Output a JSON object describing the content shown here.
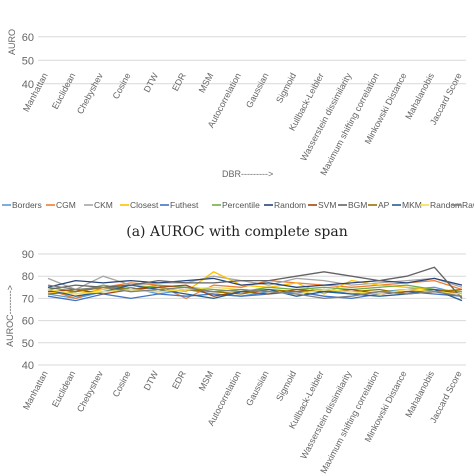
{
  "caption": "(a) AUROC with complete span",
  "chart_data": [
    {
      "type": "line",
      "ylabel": "AURO",
      "xlabel": "DBR--------->",
      "yticks": [
        "60",
        "50",
        "40"
      ],
      "ylim": [
        38,
        68
      ],
      "categories": [
        "Manhattan",
        "Euclidean",
        "Chebyshev",
        "Cosine",
        "DTW",
        "EDR",
        "MSM",
        "Autocorrelation",
        "Gaussian",
        "Sigmoid",
        "Kullback-Leibler",
        "Wasserstein dissimilarity",
        "Maximum shifting correlation",
        "Minkowski Distance",
        "Mahalanobis",
        "Jaccard Score"
      ],
      "legend_position": "bottom",
      "legend": [
        {
          "name": "Borders",
          "color": "#5B9BD5"
        },
        {
          "name": "CGM",
          "color": "#ED7D31"
        },
        {
          "name": "CKM",
          "color": "#A5A5A5"
        },
        {
          "name": "Closest",
          "color": "#FFC000"
        },
        {
          "name": "Futhest",
          "color": "#4472C4"
        },
        {
          "name": "Percentile",
          "color": "#70AD47"
        },
        {
          "name": "Random",
          "color": "#264478"
        },
        {
          "name": "SVM",
          "color": "#9E480E"
        },
        {
          "name": "BGM",
          "color": "#636363"
        },
        {
          "name": "AP",
          "color": "#997300"
        },
        {
          "name": "MKM",
          "color": "#255E91"
        },
        {
          "name": "Random",
          "color": "#F5E050"
        },
        {
          "name": "Rawdata",
          "color": "#7F7F7F"
        }
      ]
    },
    {
      "type": "line",
      "ylabel": "AUROC-------->",
      "yticks": [
        "90",
        "80",
        "70",
        "60",
        "50",
        "40"
      ],
      "ylim": [
        40,
        90
      ],
      "categories": [
        "Manhattan",
        "Euclidean",
        "Chebyshev",
        "Cosine",
        "DTW",
        "EDR",
        "MSM",
        "Autocorrelation",
        "Gaussian",
        "Sigmoid",
        "Kullback-Leibler",
        "Wasserstein dissimilarity",
        "Maximum shifting correlation",
        "Minkowski Distance",
        "Mahalanobis",
        "Jaccard Score"
      ],
      "series": [
        {
          "name": "Borders",
          "color": "#5B9BD5",
          "values": [
            72,
            70,
            73,
            75,
            72,
            74,
            72,
            71,
            73,
            72,
            74,
            72,
            73,
            74,
            75,
            72
          ]
        },
        {
          "name": "CGM",
          "color": "#ED7D31",
          "values": [
            74,
            70,
            75,
            77,
            76,
            70,
            76,
            75,
            78,
            77,
            76,
            75,
            76,
            77,
            78,
            74
          ]
        },
        {
          "name": "CKM",
          "color": "#A5A5A5",
          "values": [
            79,
            74,
            80,
            76,
            77,
            77,
            80,
            78,
            76,
            79,
            78,
            76,
            77,
            78,
            79,
            75
          ]
        },
        {
          "name": "Closest",
          "color": "#FFC000",
          "values": [
            73,
            72,
            74,
            76,
            75,
            73,
            82,
            76,
            75,
            77,
            72,
            78,
            76,
            75,
            74,
            73
          ]
        },
        {
          "name": "Futhest",
          "color": "#4472C4",
          "values": [
            71,
            69,
            72,
            70,
            72,
            71,
            72,
            71,
            72,
            73,
            71,
            70,
            72,
            73,
            72,
            71
          ]
        },
        {
          "name": "Percentile",
          "color": "#70AD47",
          "values": [
            75,
            73,
            76,
            74,
            76,
            75,
            74,
            73,
            75,
            74,
            75,
            74,
            75,
            76,
            74,
            73
          ]
        },
        {
          "name": "Random",
          "color": "#264478",
          "values": [
            75,
            78,
            77,
            78,
            77,
            78,
            79,
            76,
            77,
            75,
            76,
            77,
            78,
            77,
            79,
            76
          ]
        },
        {
          "name": "SVM",
          "color": "#9E480E",
          "values": [
            73,
            74,
            72,
            74,
            75,
            76,
            71,
            73,
            72,
            74,
            73,
            74,
            72,
            73,
            74,
            72
          ]
        },
        {
          "name": "BGM",
          "color": "#636363",
          "values": [
            74,
            76,
            75,
            76,
            78,
            77,
            77,
            78,
            78,
            80,
            82,
            80,
            78,
            80,
            84,
            70
          ]
        },
        {
          "name": "AP",
          "color": "#997300",
          "values": [
            72,
            73,
            75,
            74,
            73,
            74,
            73,
            72,
            74,
            73,
            74,
            73,
            74,
            72,
            73,
            74
          ]
        },
        {
          "name": "MKM",
          "color": "#255E91",
          "values": [
            74,
            71,
            73,
            76,
            74,
            72,
            70,
            73,
            74,
            71,
            73,
            72,
            71,
            72,
            74,
            69
          ]
        },
        {
          "name": "Random",
          "color": "#F5E050",
          "values": [
            74,
            72,
            73,
            74,
            73,
            74,
            75,
            74,
            73,
            72,
            74,
            73,
            72,
            74,
            73,
            72
          ]
        },
        {
          "name": "Rawdata",
          "color": "#7F7F7F",
          "values": [
            76,
            74,
            75,
            73,
            74,
            75,
            73,
            74,
            73,
            72,
            70,
            71,
            73,
            72,
            73,
            71
          ]
        }
      ]
    }
  ]
}
